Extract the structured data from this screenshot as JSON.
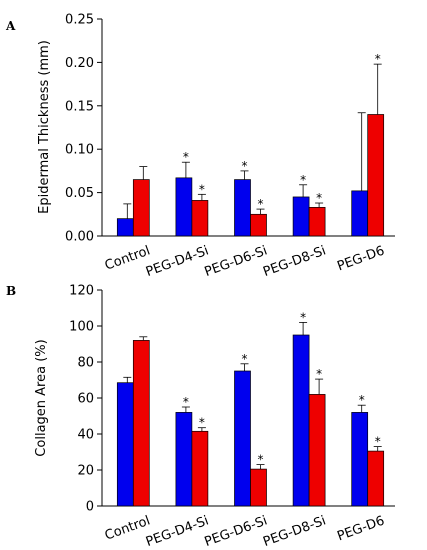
{
  "chart_data": [
    {
      "panel": "A",
      "type": "bar",
      "categories": [
        "Control",
        "PEG-D4-Si",
        "PEG-D6-Si",
        "PEG-D8-Si",
        "PEG-D6"
      ],
      "ylabel": "Epidermal Thickness (mm)",
      "ylim": [
        0,
        0.25
      ],
      "yticks": [
        "0.00",
        "0.05",
        "0.10",
        "0.15",
        "0.20",
        "0.25"
      ],
      "series": [
        {
          "color": "#0000ee",
          "values": [
            0.02,
            0.067,
            0.065,
            0.045,
            0.052
          ],
          "errors": [
            0.017,
            0.018,
            0.01,
            0.014,
            0.09
          ],
          "significant": [
            false,
            true,
            true,
            true,
            false
          ]
        },
        {
          "color": "#ee0000",
          "values": [
            0.065,
            0.041,
            0.025,
            0.033,
            0.14
          ],
          "errors": [
            0.015,
            0.007,
            0.006,
            0.005,
            0.058
          ],
          "significant": [
            false,
            true,
            true,
            true,
            true
          ]
        }
      ],
      "marker": "*"
    },
    {
      "panel": "B",
      "type": "bar",
      "categories": [
        "Control",
        "PEG-D4-Si",
        "PEG-D6-Si",
        "PEG-D8-Si",
        "PEG-D6"
      ],
      "ylabel": "Collagen Area (%)",
      "ylim": [
        0,
        120
      ],
      "yticks": [
        "0",
        "20",
        "40",
        "60",
        "80",
        "100",
        "120"
      ],
      "series": [
        {
          "color": "#0000ee",
          "values": [
            68.5,
            52.0,
            75.0,
            95.0,
            52.0
          ],
          "errors": [
            3.0,
            3.0,
            4.0,
            7.0,
            4.0
          ],
          "significant": [
            false,
            true,
            true,
            true,
            true
          ]
        },
        {
          "color": "#ee0000",
          "values": [
            92.0,
            41.5,
            20.5,
            62.0,
            30.5
          ],
          "errors": [
            2.0,
            2.0,
            2.5,
            8.5,
            2.5
          ],
          "significant": [
            false,
            true,
            true,
            true,
            true
          ]
        }
      ],
      "marker": "*"
    }
  ]
}
